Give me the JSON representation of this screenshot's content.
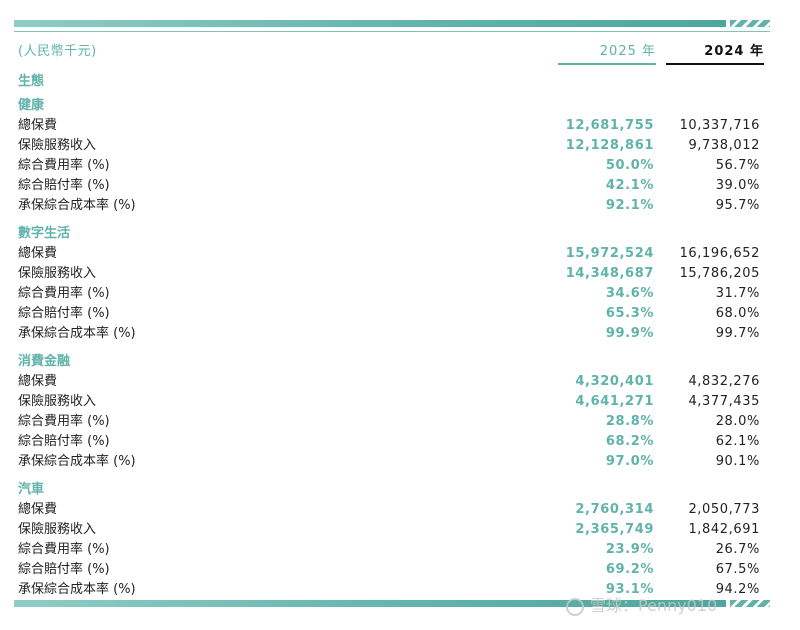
{
  "header": {
    "currency": "(人民幣千元)",
    "col_2025": "2025 年",
    "col_2024": "2024 年"
  },
  "ecosystem_title": "生態",
  "segments": [
    {
      "title": "健康",
      "rows": [
        {
          "label": "總保費",
          "v2025": "12,681,755",
          "v2024": "10,337,716"
        },
        {
          "label": "保險服務收入",
          "v2025": "12,128,861",
          "v2024": "9,738,012"
        },
        {
          "label": "綜合費用率 (%)",
          "v2025": "50.0%",
          "v2024": "56.7%"
        },
        {
          "label": "綜合賠付率 (%)",
          "v2025": "42.1%",
          "v2024": "39.0%"
        },
        {
          "label": "承保綜合成本率 (%)",
          "v2025": "92.1%",
          "v2024": "95.7%"
        }
      ]
    },
    {
      "title": "數字生活",
      "rows": [
        {
          "label": "總保費",
          "v2025": "15,972,524",
          "v2024": "16,196,652"
        },
        {
          "label": "保險服務收入",
          "v2025": "14,348,687",
          "v2024": "15,786,205"
        },
        {
          "label": "綜合費用率 (%)",
          "v2025": "34.6%",
          "v2024": "31.7%"
        },
        {
          "label": "綜合賠付率 (%)",
          "v2025": "65.3%",
          "v2024": "68.0%"
        },
        {
          "label": "承保綜合成本率 (%)",
          "v2025": "99.9%",
          "v2024": "99.7%"
        }
      ]
    },
    {
      "title": "消費金融",
      "rows": [
        {
          "label": "總保費",
          "v2025": "4,320,401",
          "v2024": "4,832,276"
        },
        {
          "label": "保險服務收入",
          "v2025": "4,641,271",
          "v2024": "4,377,435"
        },
        {
          "label": "綜合費用率 (%)",
          "v2025": "28.8%",
          "v2024": "28.0%"
        },
        {
          "label": "綜合賠付率 (%)",
          "v2025": "68.2%",
          "v2024": "62.1%"
        },
        {
          "label": "承保綜合成本率 (%)",
          "v2025": "97.0%",
          "v2024": "90.1%"
        }
      ]
    },
    {
      "title": "汽車",
      "rows": [
        {
          "label": "總保費",
          "v2025": "2,760,314",
          "v2024": "2,050,773"
        },
        {
          "label": "保險服務收入",
          "v2025": "2,365,749",
          "v2024": "1,842,691"
        },
        {
          "label": "綜合費用率 (%)",
          "v2025": "23.9%",
          "v2024": "26.7%"
        },
        {
          "label": "綜合賠付率 (%)",
          "v2025": "69.2%",
          "v2024": "67.5%"
        },
        {
          "label": "承保綜合成本率 (%)",
          "v2025": "93.1%",
          "v2024": "94.2%"
        }
      ]
    }
  ],
  "watermark": "雪球：Penny010"
}
